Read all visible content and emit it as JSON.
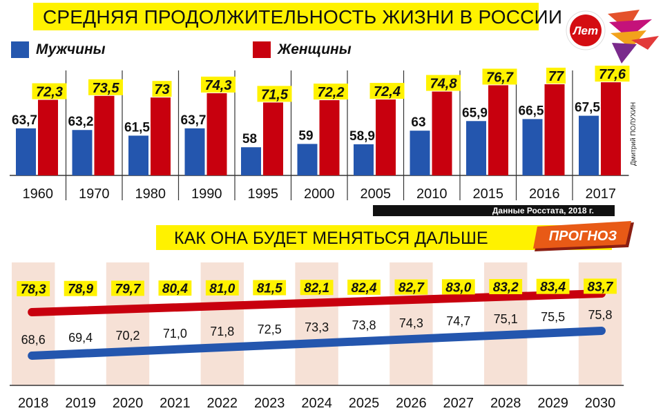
{
  "header": {
    "title": "СРЕДНЯЯ ПРОДОЛЖИТЕЛЬНОСТЬ ЖИЗНИ В РОССИИ",
    "logo_text": "Лет"
  },
  "legend": {
    "men_label": "Мужчины",
    "women_label": "Женщины"
  },
  "colors": {
    "men": "#2456ae",
    "women": "#c8000e",
    "highlight": "#fff200",
    "column_shade": "#f6e1d6"
  },
  "author_credit": "Дмитрий ПОЛУХИН",
  "source_note": "Данные Росстата, 2018 г.",
  "forecast_section": {
    "title": "КАК ОНА БУДЕТ МЕНЯТЬСЯ ДАЛЬШЕ",
    "badge": "ПРОГНОЗ"
  },
  "chart_data": [
    {
      "type": "bar",
      "categories": [
        "1960",
        "1970",
        "1980",
        "1990",
        "1995",
        "2000",
        "2005",
        "2010",
        "2015",
        "2016",
        "2017"
      ],
      "series": [
        {
          "name": "Мужчины",
          "values": [
            63.7,
            63.2,
            61.5,
            63.7,
            58,
            59,
            58.9,
            63,
            65.9,
            66.5,
            67.5
          ],
          "labels": [
            "63,7",
            "63,2",
            "61,5",
            "63,7",
            "58",
            "59",
            "58,9",
            "63",
            "65,9",
            "66,5",
            "67,5"
          ]
        },
        {
          "name": "Женщины",
          "values": [
            72.3,
            73.5,
            73,
            74.3,
            71.5,
            72.2,
            72.4,
            74.8,
            76.7,
            77,
            77.6
          ],
          "labels": [
            "72,3",
            "73,5",
            "73",
            "74,3",
            "71,5",
            "72,2",
            "72,4",
            "74,8",
            "76,7",
            "77",
            "77,6"
          ]
        }
      ]
    },
    {
      "type": "line",
      "x": [
        "2018",
        "2019",
        "2020",
        "2021",
        "2022",
        "2023",
        "2024",
        "2025",
        "2026",
        "2027",
        "2028",
        "2029",
        "2030"
      ],
      "series": [
        {
          "name": "Женщины",
          "values": [
            78.3,
            78.9,
            79.7,
            80.4,
            81.0,
            81.5,
            82.1,
            82.4,
            82.7,
            83.0,
            83.2,
            83.4,
            83.7
          ],
          "labels": [
            "78,3",
            "78,9",
            "79,7",
            "80,4",
            "81,0",
            "81,5",
            "82,1",
            "82,4",
            "82,7",
            "83,0",
            "83,2",
            "83,4",
            "83,7"
          ]
        },
        {
          "name": "Мужчины",
          "values": [
            68.6,
            69.4,
            70.2,
            71.0,
            71.8,
            72.5,
            73.3,
            73.8,
            74.3,
            74.7,
            75.1,
            75.5,
            75.8
          ],
          "labels": [
            "68,6",
            "69,4",
            "70,2",
            "71,0",
            "71,8",
            "72,5",
            "73,3",
            "73,8",
            "74,3",
            "74,7",
            "75,1",
            "75,5",
            "75,8"
          ]
        }
      ]
    }
  ]
}
